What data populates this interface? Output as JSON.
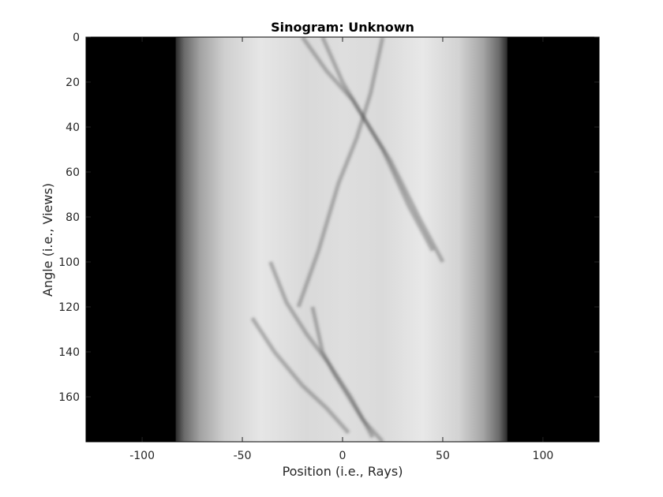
{
  "chart_data": {
    "type": "heatmap",
    "title": "Sinogram: Unknown",
    "xlabel": "Position (i.e., Rays)",
    "ylabel": "Angle (i.e., Views)",
    "xlim": [
      -128,
      128
    ],
    "ylim": [
      0,
      180
    ],
    "y_direction": "down",
    "x_ticks": [
      -100,
      -50,
      0,
      50,
      100
    ],
    "y_ticks": [
      0,
      20,
      40,
      60,
      80,
      100,
      120,
      140,
      160
    ],
    "x_tick_labels": [
      "-100",
      "-50",
      "0",
      "50",
      "100"
    ],
    "y_tick_labels": [
      "0",
      "20",
      "40",
      "60",
      "80",
      "100",
      "120",
      "140",
      "160"
    ],
    "colormap": "gray",
    "grid": false,
    "background_colors": {
      "outside": "#000000",
      "inside_peak": "#f2f2f2"
    },
    "support_edges": {
      "left": -83,
      "right": 82
    },
    "dark_traces": [
      {
        "x": [
          -20,
          -8,
          5,
          12,
          20,
          33,
          45
        ],
        "y": [
          0,
          15,
          28,
          38,
          50,
          75,
          95
        ]
      },
      {
        "x": [
          -10,
          0,
          12,
          24,
          38,
          50
        ],
        "y": [
          0,
          20,
          38,
          55,
          80,
          100
        ]
      },
      {
        "x": [
          20,
          14,
          7,
          -2,
          -12,
          -22
        ],
        "y": [
          0,
          25,
          45,
          65,
          95,
          120
        ]
      },
      {
        "x": [
          -36,
          -28,
          -18,
          -7,
          4,
          15
        ],
        "y": [
          100,
          118,
          132,
          145,
          160,
          178
        ]
      },
      {
        "x": [
          -15,
          -10,
          -4,
          3,
          10,
          20
        ],
        "y": [
          120,
          140,
          150,
          160,
          170,
          180
        ]
      },
      {
        "x": [
          -45,
          -34,
          -20,
          -8,
          3
        ],
        "y": [
          125,
          140,
          155,
          165,
          176
        ]
      }
    ]
  }
}
